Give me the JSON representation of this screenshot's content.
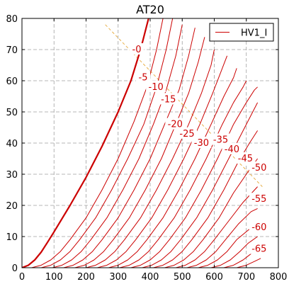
{
  "chart_data": {
    "type": "line",
    "title": "AT20",
    "xlabel": "",
    "ylabel": "",
    "xlim": [
      0,
      800
    ],
    "ylim": [
      0,
      80
    ],
    "x_ticks": [
      0,
      100,
      200,
      300,
      400,
      500,
      600,
      700,
      800
    ],
    "y_ticks": [
      0,
      10,
      20,
      30,
      40,
      50,
      60,
      70,
      80
    ],
    "grid": true,
    "legend": {
      "position": "top-right",
      "entries": [
        {
          "name": "HV1_I",
          "color": "#cc0000"
        }
      ]
    },
    "line_color": "#cc0000",
    "bold_curve_color": "#cc0000",
    "load_line_color": "#e8b04a",
    "load_line": [
      [
        260,
        78
      ],
      [
        750,
        26
      ]
    ],
    "curves": [
      {
        "label": "-0",
        "bold": true,
        "points": [
          [
            0,
            0
          ],
          [
            20,
            0.8
          ],
          [
            40,
            2.5
          ],
          [
            60,
            5
          ],
          [
            80,
            8.2
          ],
          [
            100,
            11.5
          ],
          [
            150,
            20
          ],
          [
            200,
            29
          ],
          [
            250,
            39
          ],
          [
            300,
            50
          ],
          [
            340,
            60
          ],
          [
            370,
            70
          ],
          [
            395,
            80
          ]
        ]
      },
      {
        "label": "-5",
        "points": [
          [
            30,
            0
          ],
          [
            60,
            0.8
          ],
          [
            90,
            2.5
          ],
          [
            120,
            5.2
          ],
          [
            150,
            9
          ],
          [
            200,
            16
          ],
          [
            250,
            25
          ],
          [
            300,
            35
          ],
          [
            350,
            47
          ],
          [
            390,
            58
          ],
          [
            420,
            70
          ],
          [
            440,
            80
          ]
        ]
      },
      {
        "label": "-10",
        "points": [
          [
            60,
            0
          ],
          [
            90,
            0.8
          ],
          [
            120,
            2.5
          ],
          [
            150,
            5.2
          ],
          [
            180,
            9
          ],
          [
            230,
            16
          ],
          [
            280,
            25
          ],
          [
            330,
            35
          ],
          [
            380,
            46
          ],
          [
            420,
            58
          ],
          [
            450,
            70
          ],
          [
            470,
            80
          ]
        ]
      },
      {
        "label": "-15",
        "points": [
          [
            95,
            0
          ],
          [
            125,
            0.8
          ],
          [
            155,
            2.5
          ],
          [
            185,
            5.2
          ],
          [
            215,
            9
          ],
          [
            265,
            16
          ],
          [
            315,
            25
          ],
          [
            365,
            35
          ],
          [
            410,
            46
          ],
          [
            450,
            57
          ],
          [
            480,
            68
          ],
          [
            500,
            78
          ]
        ]
      },
      {
        "label": "-20",
        "points": [
          [
            130,
            0
          ],
          [
            160,
            0.8
          ],
          [
            190,
            2.5
          ],
          [
            220,
            5.2
          ],
          [
            250,
            9
          ],
          [
            300,
            16
          ],
          [
            350,
            25
          ],
          [
            400,
            35
          ],
          [
            445,
            46
          ],
          [
            490,
            57
          ],
          [
            520,
            68
          ],
          [
            540,
            77
          ]
        ]
      },
      {
        "label": "-25",
        "points": [
          [
            165,
            0
          ],
          [
            195,
            0.8
          ],
          [
            225,
            2.5
          ],
          [
            255,
            5.2
          ],
          [
            285,
            9
          ],
          [
            335,
            16
          ],
          [
            385,
            25
          ],
          [
            435,
            35
          ],
          [
            480,
            46
          ],
          [
            520,
            56
          ],
          [
            550,
            66
          ],
          [
            570,
            74
          ]
        ]
      },
      {
        "label": "-30",
        "points": [
          [
            200,
            0
          ],
          [
            230,
            0.8
          ],
          [
            260,
            2.5
          ],
          [
            290,
            5.2
          ],
          [
            320,
            9
          ],
          [
            370,
            16
          ],
          [
            420,
            25
          ],
          [
            470,
            35
          ],
          [
            520,
            46
          ],
          [
            560,
            56
          ],
          [
            590,
            65
          ],
          [
            600,
            70
          ]
        ]
      },
      {
        "label": "-35",
        "points": [
          [
            235,
            0
          ],
          [
            265,
            0.8
          ],
          [
            295,
            2.5
          ],
          [
            325,
            5.2
          ],
          [
            355,
            9
          ],
          [
            405,
            16
          ],
          [
            455,
            25
          ],
          [
            505,
            35
          ],
          [
            555,
            46
          ],
          [
            595,
            56
          ],
          [
            625,
            64
          ],
          [
            640,
            68
          ]
        ]
      },
      {
        "label": "-40",
        "points": [
          [
            270,
            0
          ],
          [
            300,
            0.8
          ],
          [
            330,
            2.5
          ],
          [
            360,
            5.2
          ],
          [
            390,
            9
          ],
          [
            440,
            16
          ],
          [
            490,
            25
          ],
          [
            540,
            35
          ],
          [
            590,
            46
          ],
          [
            630,
            55
          ],
          [
            660,
            61
          ],
          [
            670,
            64
          ]
        ]
      },
      {
        "label": "-45",
        "points": [
          [
            305,
            0
          ],
          [
            335,
            0.8
          ],
          [
            365,
            2.5
          ],
          [
            395,
            5.2
          ],
          [
            425,
            9
          ],
          [
            475,
            16
          ],
          [
            525,
            25
          ],
          [
            575,
            35
          ],
          [
            625,
            46
          ],
          [
            660,
            53
          ],
          [
            690,
            58
          ],
          [
            700,
            60
          ]
        ]
      },
      {
        "label": "-50",
        "points": [
          [
            340,
            0
          ],
          [
            370,
            0.8
          ],
          [
            400,
            2.5
          ],
          [
            430,
            5.2
          ],
          [
            460,
            9
          ],
          [
            510,
            16
          ],
          [
            560,
            25
          ],
          [
            610,
            35
          ],
          [
            660,
            46
          ],
          [
            700,
            53
          ],
          [
            725,
            57
          ],
          [
            735,
            58
          ]
        ]
      },
      {
        "label": "-55",
        "points": [
          [
            375,
            0
          ],
          [
            405,
            0.8
          ],
          [
            435,
            2.5
          ],
          [
            465,
            5.2
          ],
          [
            495,
            9
          ],
          [
            545,
            16
          ],
          [
            595,
            25
          ],
          [
            645,
            35
          ],
          [
            690,
            44
          ],
          [
            725,
            51
          ],
          [
            735,
            53
          ]
        ]
      },
      {
        "label": "-60",
        "points": [
          [
            410,
            0
          ],
          [
            440,
            0.8
          ],
          [
            470,
            2.5
          ],
          [
            500,
            5.2
          ],
          [
            530,
            9
          ],
          [
            580,
            16
          ],
          [
            630,
            25
          ],
          [
            675,
            34
          ],
          [
            710,
            40
          ],
          [
            735,
            44
          ]
        ]
      },
      {
        "label": "-65",
        "points": [
          [
            445,
            0
          ],
          [
            475,
            0.8
          ],
          [
            505,
            2.5
          ],
          [
            535,
            5.2
          ],
          [
            565,
            9
          ],
          [
            615,
            16
          ],
          [
            660,
            24
          ],
          [
            700,
            30
          ],
          [
            735,
            35
          ]
        ]
      },
      {
        "label": "",
        "points": [
          [
            480,
            0
          ],
          [
            510,
            0.8
          ],
          [
            540,
            2.5
          ],
          [
            570,
            5.2
          ],
          [
            600,
            9
          ],
          [
            645,
            15
          ],
          [
            690,
            21
          ],
          [
            735,
            26
          ]
        ]
      },
      {
        "label": "",
        "points": [
          [
            515,
            0
          ],
          [
            545,
            0.8
          ],
          [
            575,
            2.5
          ],
          [
            605,
            5.2
          ],
          [
            635,
            9
          ],
          [
            675,
            14
          ],
          [
            715,
            18
          ],
          [
            735,
            19
          ]
        ]
      },
      {
        "label": "",
        "points": [
          [
            550,
            0
          ],
          [
            580,
            0.8
          ],
          [
            610,
            2.5
          ],
          [
            640,
            5.2
          ],
          [
            670,
            9
          ],
          [
            705,
            12
          ],
          [
            735,
            14
          ]
        ]
      },
      {
        "label": "",
        "points": [
          [
            590,
            0
          ],
          [
            620,
            0.8
          ],
          [
            650,
            2.5
          ],
          [
            680,
            5.2
          ],
          [
            705,
            7.8
          ],
          [
            735,
            10
          ]
        ]
      },
      {
        "label": "",
        "points": [
          [
            630,
            0
          ],
          [
            660,
            0.8
          ],
          [
            690,
            2.5
          ],
          [
            715,
            4.5
          ],
          [
            735,
            5.8
          ]
        ]
      },
      {
        "label": "",
        "points": [
          [
            670,
            0
          ],
          [
            700,
            0.8
          ],
          [
            725,
            2
          ],
          [
            745,
            3
          ]
        ]
      }
    ],
    "curve_labels": [
      {
        "text": "-0",
        "x": 358,
        "y": 70
      },
      {
        "text": "-5",
        "x": 378,
        "y": 61
      },
      {
        "text": "-10",
        "x": 418,
        "y": 58
      },
      {
        "text": "-15",
        "x": 457,
        "y": 54
      },
      {
        "text": "-20",
        "x": 478,
        "y": 46
      },
      {
        "text": "-25",
        "x": 515,
        "y": 43
      },
      {
        "text": "-30",
        "x": 560,
        "y": 40
      },
      {
        "text": "-35",
        "x": 620,
        "y": 41
      },
      {
        "text": "-40",
        "x": 655,
        "y": 38
      },
      {
        "text": "-45",
        "x": 697,
        "y": 35
      },
      {
        "text": "-50",
        "x": 740,
        "y": 32
      },
      {
        "text": "-55",
        "x": 740,
        "y": 22
      },
      {
        "text": "-60",
        "x": 740,
        "y": 13
      },
      {
        "text": "-65",
        "x": 740,
        "y": 6
      }
    ]
  }
}
